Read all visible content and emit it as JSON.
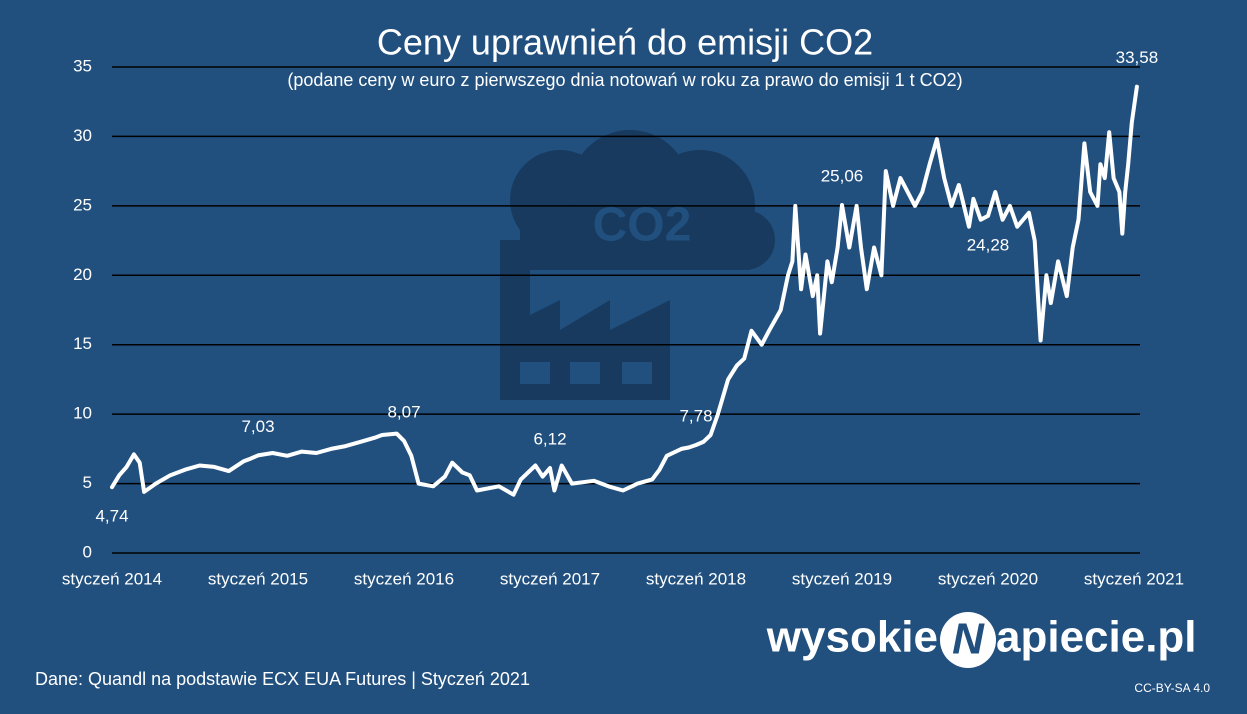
{
  "chart_data": {
    "type": "line",
    "title": "Ceny uprawnień do emisji CO2",
    "subtitle": "(podane ceny w euro z pierwszego dnia notowań w roku za prawo do emisji 1 t CO2)",
    "series": [
      {
        "color": "#ffffff",
        "x": [
          2014.0,
          2014.05,
          2014.1,
          2014.15,
          2014.19,
          2014.22,
          2014.3,
          2014.4,
          2014.5,
          2014.6,
          2014.7,
          2014.8,
          2014.9,
          2014.95,
          2015.0,
          2015.1,
          2015.2,
          2015.3,
          2015.4,
          2015.5,
          2015.6,
          2015.7,
          2015.8,
          2015.85,
          2015.95,
          2016.0,
          2016.05,
          2016.1,
          2016.2,
          2016.28,
          2016.33,
          2016.4,
          2016.45,
          2016.5,
          2016.65,
          2016.75,
          2016.8,
          2016.9,
          2016.95,
          2017.0,
          2017.03,
          2017.08,
          2017.15,
          2017.3,
          2017.4,
          2017.5,
          2017.6,
          2017.7,
          2017.75,
          2017.8,
          2017.9,
          2017.95,
          2018.0,
          2018.05,
          2018.1,
          2018.15,
          2018.22,
          2018.28,
          2018.33,
          2018.38,
          2018.45,
          2018.5,
          2018.58,
          2018.63,
          2018.66,
          2018.68,
          2018.72,
          2018.75,
          2018.8,
          2018.83,
          2018.85,
          2018.9,
          2018.93,
          2018.97,
          2019.0,
          2019.05,
          2019.1,
          2019.13,
          2019.17,
          2019.22,
          2019.27,
          2019.3,
          2019.35,
          2019.4,
          2019.5,
          2019.55,
          2019.6,
          2019.65,
          2019.7,
          2019.75,
          2019.8,
          2019.87,
          2019.9,
          2019.95,
          2020.0,
          2020.05,
          2020.1,
          2020.15,
          2020.2,
          2020.28,
          2020.32,
          2020.36,
          2020.4,
          2020.43,
          2020.48,
          2020.54,
          2020.58,
          2020.62,
          2020.66,
          2020.7,
          2020.75,
          2020.77,
          2020.8,
          2020.83,
          2020.86,
          2020.9,
          2020.92,
          2020.94,
          2020.96,
          2020.985,
          2021.02
        ],
        "values": [
          4.74,
          5.6,
          6.2,
          7.1,
          6.5,
          4.4,
          5.0,
          5.6,
          6.0,
          6.3,
          6.2,
          5.9,
          6.6,
          6.8,
          7.03,
          7.2,
          7.0,
          7.3,
          7.2,
          7.5,
          7.7,
          8.0,
          8.3,
          8.5,
          8.6,
          8.07,
          7.0,
          5.0,
          4.8,
          5.5,
          6.5,
          5.8,
          5.6,
          4.5,
          4.8,
          4.2,
          5.3,
          6.3,
          5.5,
          6.12,
          4.5,
          6.3,
          5.0,
          5.2,
          4.8,
          4.5,
          5.0,
          5.3,
          6.0,
          7.0,
          7.5,
          7.6,
          7.78,
          8.0,
          8.5,
          10.0,
          12.5,
          13.5,
          14.0,
          16.0,
          15.0,
          16.0,
          17.5,
          20.0,
          21.0,
          25.0,
          19.0,
          21.5,
          18.5,
          20.0,
          15.8,
          21.0,
          19.5,
          22.0,
          25.06,
          22.0,
          25.0,
          22.0,
          19.0,
          22.0,
          20.0,
          27.5,
          25.0,
          27.0,
          25.0,
          26.0,
          28.0,
          29.8,
          27.0,
          25.0,
          26.5,
          23.5,
          25.5,
          24.0,
          24.28,
          26.0,
          24.0,
          25.0,
          23.5,
          24.5,
          22.5,
          15.3,
          20.0,
          18.0,
          21.0,
          18.5,
          22.0,
          24.0,
          29.5,
          26.0,
          25.0,
          28.0,
          27.0,
          30.3,
          27.0,
          26.0,
          23.0,
          26.0,
          28.0,
          31.0,
          33.58
        ]
      }
    ],
    "annotations": [
      {
        "x": 2014.0,
        "y": 4.74,
        "label": "4,74",
        "position": "below"
      },
      {
        "x": 2015.0,
        "y": 7.03,
        "label": "7,03",
        "position": "above"
      },
      {
        "x": 2016.0,
        "y": 8.07,
        "label": "8,07",
        "position": "above"
      },
      {
        "x": 2017.0,
        "y": 6.12,
        "label": "6,12",
        "position": "above"
      },
      {
        "x": 2018.0,
        "y": 7.78,
        "label": "7,78",
        "position": "above"
      },
      {
        "x": 2019.0,
        "y": 25.06,
        "label": "25,06",
        "position": "above"
      },
      {
        "x": 2020.0,
        "y": 24.28,
        "label": "24,28",
        "position": "below"
      },
      {
        "x": 2021.02,
        "y": 33.58,
        "label": "33,58",
        "position": "above"
      }
    ],
    "xlim": [
      2014,
      2021
    ],
    "xticks": [
      {
        "value": 2014,
        "label": "styczeń 2014"
      },
      {
        "value": 2015,
        "label": "styczeń 2015"
      },
      {
        "value": 2016,
        "label": "styczeń 2016"
      },
      {
        "value": 2017,
        "label": "styczeń 2017"
      },
      {
        "value": 2018,
        "label": "styczeń 2018"
      },
      {
        "value": 2019,
        "label": "styczeń 2019"
      },
      {
        "value": 2020,
        "label": "styczeń 2020"
      },
      {
        "value": 2021,
        "label": "styczeń 2021"
      }
    ],
    "ylim": [
      0,
      35
    ],
    "yticks": [
      0,
      5,
      10,
      15,
      20,
      25,
      30,
      35
    ],
    "grid": true,
    "watermark_text": "CO2"
  },
  "footer": {
    "source": "Dane: Quandl na podstawie ECX EUA Futures  |  Styczeń 2021",
    "license": "CC-BY-SA 4.0",
    "brand_left": "wysokie",
    "brand_mark": "N",
    "brand_right": "apiecie.pl"
  }
}
